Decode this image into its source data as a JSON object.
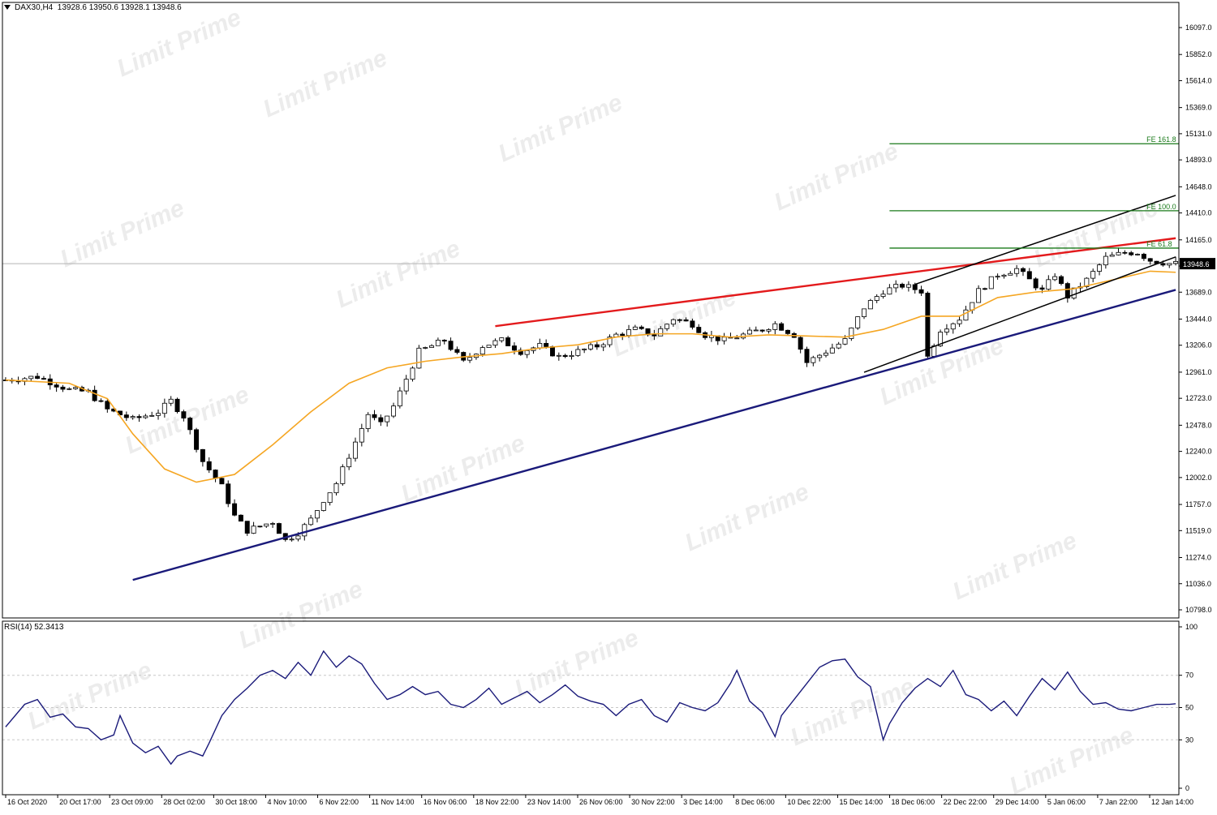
{
  "main_header": "DAX30,H4  13928.6 13950.6 13928.1 13948.6",
  "rsi_header": "RSI(14) 52.3413",
  "price_tag": "13948.6",
  "watermark": "Limit Prime",
  "colors": {
    "background": "#ffffff",
    "bull_candle": "#ffffff",
    "bear_candle": "#000000",
    "ma": "#f5a623",
    "resistance": "#e31a1c",
    "support": "#1a1a7a",
    "channel": "#000000",
    "fib": "#1a7a1a",
    "rsi": "#1a1a7a",
    "grid_dotted": "#c8c8c8"
  },
  "chart_data": [
    {
      "type": "candlestick",
      "title": "DAX30,H4",
      "y_ticks": [
        "16097.0",
        "15852.0",
        "15614.0",
        "15369.0",
        "15131.0",
        "14893.0",
        "14648.0",
        "14410.0",
        "14165.0",
        "13927.0",
        "13689.0",
        "13444.0",
        "13206.0",
        "12961.0",
        "12723.0",
        "12478.0",
        "12240.0",
        "12002.0",
        "11757.0",
        "11519.0",
        "11274.0",
        "11036.0",
        "10798.0"
      ],
      "ylim": [
        10798,
        16097
      ],
      "x_ticks": [
        "16 Oct 2020",
        "20 Oct 17:00",
        "23 Oct 09:00",
        "28 Oct 02:00",
        "30 Oct 18:00",
        "4 Nov 10:00",
        "6 Nov 22:00",
        "11 Nov 14:00",
        "16 Nov 06:00",
        "18 Nov 22:00",
        "23 Nov 14:00",
        "26 Nov 06:00",
        "30 Nov 22:00",
        "3 Dec 14:00",
        "8 Dec 06:00",
        "10 Dec 22:00",
        "15 Dec 14:00",
        "18 Dec 06:00",
        "22 Dec 22:00",
        "29 Dec 14:00",
        "5 Jan 06:00",
        "7 Jan 22:00",
        "12 Jan 14:00"
      ],
      "last_price": 13948.6,
      "close_path": [
        [
          0,
          12890
        ],
        [
          5,
          12920
        ],
        [
          10,
          12800
        ],
        [
          13,
          12780
        ],
        [
          16,
          12620
        ],
        [
          20,
          12530
        ],
        [
          24,
          12600
        ],
        [
          26,
          12700
        ],
        [
          28,
          12560
        ],
        [
          31,
          12150
        ],
        [
          34,
          11920
        ],
        [
          36,
          11650
        ],
        [
          38,
          11520
        ],
        [
          40,
          11560
        ],
        [
          42,
          11600
        ],
        [
          44,
          11430
        ],
        [
          46,
          11500
        ],
        [
          48,
          11620
        ],
        [
          50,
          11800
        ],
        [
          52,
          11950
        ],
        [
          54,
          12200
        ],
        [
          56,
          12450
        ],
        [
          57,
          12580
        ],
        [
          59,
          12480
        ],
        [
          61,
          12650
        ],
        [
          63,
          12900
        ],
        [
          65,
          13150
        ],
        [
          67,
          13200
        ],
        [
          69,
          13250
        ],
        [
          72,
          13050
        ],
        [
          75,
          13200
        ],
        [
          78,
          13250
        ],
        [
          81,
          13150
        ],
        [
          84,
          13200
        ],
        [
          87,
          13100
        ],
        [
          90,
          13150
        ],
        [
          93,
          13200
        ],
        [
          96,
          13300
        ],
        [
          99,
          13350
        ],
        [
          102,
          13300
        ],
        [
          105,
          13450
        ],
        [
          108,
          13400
        ],
        [
          110,
          13300
        ],
        [
          113,
          13250
        ],
        [
          116,
          13300
        ],
        [
          119,
          13350
        ],
        [
          121,
          13400
        ],
        [
          124,
          13300
        ],
        [
          126,
          13050
        ],
        [
          129,
          13150
        ],
        [
          132,
          13250
        ],
        [
          135,
          13550
        ],
        [
          138,
          13700
        ],
        [
          141,
          13750
        ],
        [
          144,
          13700
        ],
        [
          145,
          13100
        ],
        [
          147,
          13350
        ],
        [
          150,
          13450
        ],
        [
          153,
          13700
        ],
        [
          156,
          13850
        ],
        [
          159,
          13900
        ],
        [
          161,
          13800
        ],
        [
          163,
          13700
        ],
        [
          165,
          13850
        ],
        [
          167,
          13650
        ],
        [
          170,
          13800
        ],
        [
          173,
          14000
        ],
        [
          176,
          14050
        ],
        [
          178,
          14050
        ],
        [
          180,
          13980
        ],
        [
          183,
          13950
        ],
        [
          184,
          13948
        ]
      ],
      "series": [
        {
          "name": "",
          "kind": "moving_average",
          "points": [
            [
              0,
              12890
            ],
            [
              10,
              12860
            ],
            [
              16,
              12720
            ],
            [
              20,
              12400
            ],
            [
              25,
              12080
            ],
            [
              30,
              11960
            ],
            [
              36,
              12030
            ],
            [
              42,
              12300
            ],
            [
              48,
              12600
            ],
            [
              54,
              12860
            ],
            [
              60,
              13000
            ],
            [
              66,
              13060
            ],
            [
              72,
              13100
            ],
            [
              78,
              13130
            ],
            [
              84,
              13180
            ],
            [
              90,
              13210
            ],
            [
              96,
              13280
            ],
            [
              102,
              13310
            ],
            [
              108,
              13310
            ],
            [
              114,
              13280
            ],
            [
              120,
              13300
            ],
            [
              126,
              13290
            ],
            [
              132,
              13280
            ],
            [
              138,
              13350
            ],
            [
              144,
              13470
            ],
            [
              150,
              13470
            ],
            [
              156,
              13640
            ],
            [
              162,
              13690
            ],
            [
              168,
              13720
            ],
            [
              174,
              13800
            ],
            [
              180,
              13880
            ],
            [
              184,
              13870
            ]
          ]
        },
        {
          "name": "",
          "kind": "trendline",
          "points": [
            [
              20,
              11070
            ],
            [
              184,
              13710
            ]
          ]
        },
        {
          "name": "",
          "kind": "trendline",
          "points": [
            [
              77,
              13380
            ],
            [
              184,
              14180
            ]
          ]
        },
        {
          "name": "",
          "kind": "channel",
          "points": [
            [
              135,
              12960
            ],
            [
              184,
              14010
            ]
          ]
        },
        {
          "name": "",
          "kind": "channel",
          "points": [
            [
              143,
              13760
            ],
            [
              184,
              14570
            ]
          ]
        }
      ],
      "fib_levels": [
        {
          "label": "FE 161.8",
          "value": 15040
        },
        {
          "label": "FE 100.0",
          "value": 14430
        },
        {
          "label": "FE 61.8",
          "value": 14090
        }
      ]
    },
    {
      "type": "line",
      "title": "RSI(14)",
      "ylim": [
        0,
        100
      ],
      "y_ticks": [
        "100",
        "70",
        "50",
        "30",
        "0"
      ],
      "levels": [
        70,
        50,
        30
      ],
      "last_value": 52.3413,
      "values": [
        [
          0,
          38
        ],
        [
          3,
          52
        ],
        [
          5,
          55
        ],
        [
          7,
          44
        ],
        [
          9,
          46
        ],
        [
          11,
          38
        ],
        [
          13,
          37
        ],
        [
          15,
          30
        ],
        [
          17,
          33
        ],
        [
          18,
          45
        ],
        [
          20,
          28
        ],
        [
          22,
          22
        ],
        [
          24,
          26
        ],
        [
          26,
          15
        ],
        [
          27,
          20
        ],
        [
          29,
          23
        ],
        [
          31,
          20
        ],
        [
          32,
          28
        ],
        [
          34,
          45
        ],
        [
          36,
          55
        ],
        [
          38,
          62
        ],
        [
          40,
          70
        ],
        [
          42,
          73
        ],
        [
          44,
          68
        ],
        [
          46,
          78
        ],
        [
          48,
          70
        ],
        [
          50,
          85
        ],
        [
          52,
          75
        ],
        [
          54,
          82
        ],
        [
          56,
          77
        ],
        [
          58,
          65
        ],
        [
          60,
          55
        ],
        [
          62,
          58
        ],
        [
          64,
          63
        ],
        [
          66,
          58
        ],
        [
          68,
          60
        ],
        [
          70,
          52
        ],
        [
          72,
          50
        ],
        [
          74,
          55
        ],
        [
          76,
          62
        ],
        [
          78,
          52
        ],
        [
          80,
          56
        ],
        [
          82,
          60
        ],
        [
          84,
          53
        ],
        [
          86,
          58
        ],
        [
          88,
          64
        ],
        [
          90,
          57
        ],
        [
          92,
          54
        ],
        [
          94,
          52
        ],
        [
          96,
          45
        ],
        [
          98,
          52
        ],
        [
          100,
          55
        ],
        [
          102,
          45
        ],
        [
          104,
          41
        ],
        [
          106,
          53
        ],
        [
          108,
          50
        ],
        [
          110,
          48
        ],
        [
          112,
          53
        ],
        [
          114,
          65
        ],
        [
          115,
          73
        ],
        [
          117,
          54
        ],
        [
          119,
          47
        ],
        [
          121,
          32
        ],
        [
          122,
          45
        ],
        [
          124,
          55
        ],
        [
          126,
          65
        ],
        [
          128,
          75
        ],
        [
          130,
          79
        ],
        [
          132,
          80
        ],
        [
          134,
          69
        ],
        [
          136,
          63
        ],
        [
          138,
          30
        ],
        [
          139,
          40
        ],
        [
          141,
          53
        ],
        [
          143,
          62
        ],
        [
          145,
          68
        ],
        [
          147,
          63
        ],
        [
          149,
          73
        ],
        [
          151,
          58
        ],
        [
          153,
          55
        ],
        [
          155,
          48
        ],
        [
          157,
          54
        ],
        [
          159,
          45
        ],
        [
          161,
          57
        ],
        [
          163,
          68
        ],
        [
          165,
          61
        ],
        [
          167,
          72
        ],
        [
          169,
          60
        ],
        [
          171,
          52
        ],
        [
          173,
          53
        ],
        [
          175,
          49
        ],
        [
          177,
          48
        ],
        [
          179,
          50
        ],
        [
          181,
          52
        ],
        [
          183,
          52
        ],
        [
          184,
          52.34
        ]
      ]
    }
  ]
}
